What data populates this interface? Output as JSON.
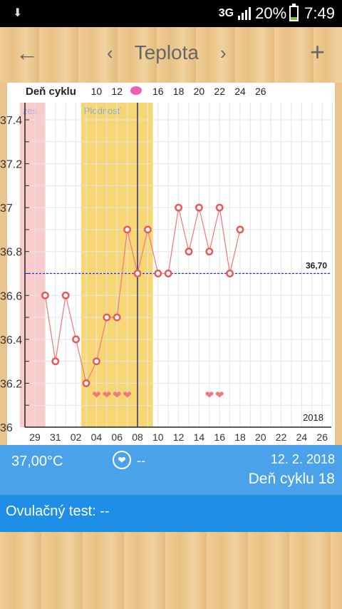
{
  "status_bar": {
    "network": "3G",
    "battery_text": "20%",
    "time": "7:49",
    "battery_level": 0.2
  },
  "header": {
    "title": "Teplota",
    "back_icon": "arrow-left-icon",
    "prev_icon": "chevron-left-icon",
    "next_icon": "chevron-right-icon",
    "add_icon": "plus-icon"
  },
  "chart_data": {
    "type": "line",
    "top_axis": {
      "label": "Deň cyklu",
      "ticks": [
        "10",
        "12",
        "16",
        "18",
        "20",
        "22",
        "24",
        "26"
      ]
    },
    "x_ticks": [
      "29",
      "31",
      "02",
      "04",
      "06",
      "08",
      "10",
      "12",
      "14",
      "16",
      "18",
      "20",
      "22",
      "24",
      "26"
    ],
    "y_ticks": [
      "37.4",
      "37.2",
      "37",
      "36.8",
      "36.6",
      "36.4",
      "36.2",
      "36"
    ],
    "ylim": [
      36,
      37.4
    ],
    "year": "2018",
    "bands": [
      {
        "label": "zes",
        "color": "#f9cccc",
        "from_day": 29,
        "to_day": 30
      },
      {
        "label": "Plodnosť",
        "color": "#f7d774",
        "from_day": 3,
        "to_day": 9
      }
    ],
    "today_day": 8,
    "reference_line": {
      "value": 36.7,
      "label": "36,70"
    },
    "series": [
      {
        "points": [
          {
            "d": 30,
            "y": 36.6
          },
          {
            "d": 31,
            "y": 36.3
          },
          {
            "d": 1,
            "y": 36.6
          },
          {
            "d": 2,
            "y": 36.4
          },
          {
            "d": 3,
            "y": 36.2
          },
          {
            "d": 4,
            "y": 36.3
          },
          {
            "d": 5,
            "y": 36.5
          },
          {
            "d": 6,
            "y": 36.5
          },
          {
            "d": 7,
            "y": 36.9
          },
          {
            "d": 8,
            "y": 36.7
          },
          {
            "d": 9,
            "y": 36.9
          },
          {
            "d": 10,
            "y": 36.7
          },
          {
            "d": 11,
            "y": 36.7
          },
          {
            "d": 12,
            "y": 37.0
          },
          {
            "d": 13,
            "y": 36.8
          },
          {
            "d": 14,
            "y": 37.0
          },
          {
            "d": 15,
            "y": 36.8
          },
          {
            "d": 16,
            "y": 37.0
          },
          {
            "d": 17,
            "y": 36.7
          },
          {
            "d": 18,
            "y": 36.9
          }
        ]
      }
    ],
    "hearts_days": [
      4,
      5,
      6,
      7,
      15,
      16
    ]
  },
  "info": {
    "temperature": "37,00°C",
    "heart_value": "--",
    "date": "12. 2. 2018",
    "cycle_day": "Deň cyklu 18"
  },
  "ovulation": {
    "text": "Ovulačný test: --"
  },
  "colors": {
    "accent_blue": "#4aa3ea",
    "dark_blue": "#1e8ee6",
    "line_red": "#f08080",
    "marker_red": "#e85a5a"
  }
}
